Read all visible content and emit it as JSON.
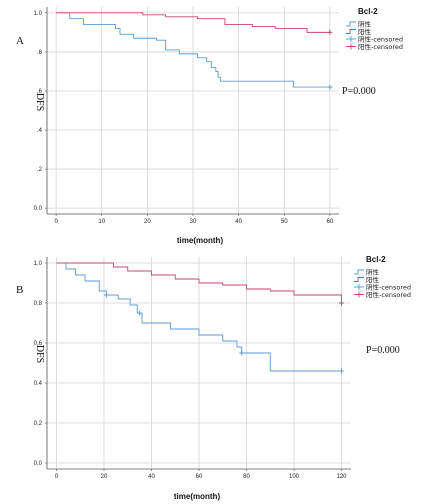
{
  "colors": {
    "negative": "#5b9bd5",
    "positive": "#c8466e",
    "grid": "#d3d3d3",
    "axis": "#555555"
  },
  "chart_data": [
    {
      "type": "line",
      "step": true,
      "panel_label": "A",
      "ylabel": "DFS",
      "xlabel": "time(month)",
      "xlim": [
        -2,
        62
      ],
      "ylim": [
        -0.03,
        1.03
      ],
      "xticks": [
        0,
        10,
        20,
        30,
        40,
        50,
        60
      ],
      "yticks": [
        0.0,
        0.2,
        0.4,
        0.6,
        0.8,
        1.0
      ],
      "xtick_labels": [
        "0",
        "10",
        "20",
        "30",
        "40",
        "50",
        "60"
      ],
      "ytick_labels": [
        "0.0",
        ".2",
        ".4",
        ".6",
        ".8",
        "1.0"
      ],
      "grid": true,
      "legend_title": "Bcl-2",
      "legend_position": "top-right",
      "legend_entries": [
        "阴性",
        "阳性",
        "阴性-censored",
        "阳性-censored"
      ],
      "annotation": "P=0.000",
      "series": [
        {
          "name": "阴性",
          "color": "#5b9bd5",
          "x": [
            0,
            3,
            6,
            13,
            14,
            17,
            22,
            24,
            27,
            31,
            33,
            34,
            35,
            35.5,
            36,
            42,
            52,
            60
          ],
          "y": [
            1.0,
            0.97,
            0.94,
            0.92,
            0.89,
            0.87,
            0.86,
            0.81,
            0.79,
            0.77,
            0.75,
            0.72,
            0.7,
            0.67,
            0.65,
            0.65,
            0.62,
            0.62
          ],
          "censored": [
            [
              60,
              0.62
            ]
          ]
        },
        {
          "name": "阳性",
          "color": "#c8466e",
          "x": [
            0,
            19,
            24,
            31,
            37,
            43,
            48,
            55,
            60
          ],
          "y": [
            1.0,
            0.99,
            0.98,
            0.97,
            0.94,
            0.93,
            0.92,
            0.9,
            0.9
          ],
          "censored": [
            [
              60,
              0.9
            ]
          ]
        }
      ]
    },
    {
      "type": "line",
      "step": true,
      "panel_label": "B",
      "ylabel": "DFS",
      "xlabel": "time(month)",
      "xlim": [
        -4,
        124
      ],
      "ylim": [
        -0.03,
        1.03
      ],
      "xticks": [
        0,
        20,
        40,
        60,
        80,
        100,
        120
      ],
      "yticks": [
        0.0,
        0.2,
        0.4,
        0.6,
        0.8,
        1.0
      ],
      "xtick_labels": [
        "0",
        "20",
        "40",
        "60",
        "80",
        "100",
        "120"
      ],
      "ytick_labels": [
        "0.0",
        "0.2",
        "0.4",
        "0.6",
        "0.8",
        "1.0"
      ],
      "grid": true,
      "legend_title": "Bcl-2",
      "legend_position": "top-right",
      "legend_entries": [
        "阴性",
        "阳性",
        "阴性-censored",
        "阳性-censored"
      ],
      "annotation": "P=0.000",
      "series": [
        {
          "name": "阴性",
          "color": "#5b9bd5",
          "x": [
            0,
            4,
            8,
            12,
            18,
            21,
            26,
            31,
            34,
            36,
            48,
            60,
            70,
            76,
            78,
            90,
            120
          ],
          "y": [
            1.0,
            0.97,
            0.94,
            0.91,
            0.86,
            0.84,
            0.82,
            0.79,
            0.75,
            0.7,
            0.67,
            0.64,
            0.61,
            0.58,
            0.55,
            0.46,
            0.46
          ],
          "censored": [
            [
              21,
              0.84
            ],
            [
              35,
              0.75
            ],
            [
              78,
              0.55
            ],
            [
              120,
              0.46
            ]
          ]
        },
        {
          "name": "阳性",
          "color": "#c8466e",
          "x": [
            0,
            24,
            30,
            40,
            50,
            60,
            70,
            80,
            90,
            100,
            120
          ],
          "y": [
            1.0,
            0.98,
            0.96,
            0.94,
            0.92,
            0.9,
            0.89,
            0.87,
            0.86,
            0.84,
            0.8
          ],
          "censored": [
            [
              120,
              0.8
            ]
          ]
        }
      ]
    }
  ]
}
